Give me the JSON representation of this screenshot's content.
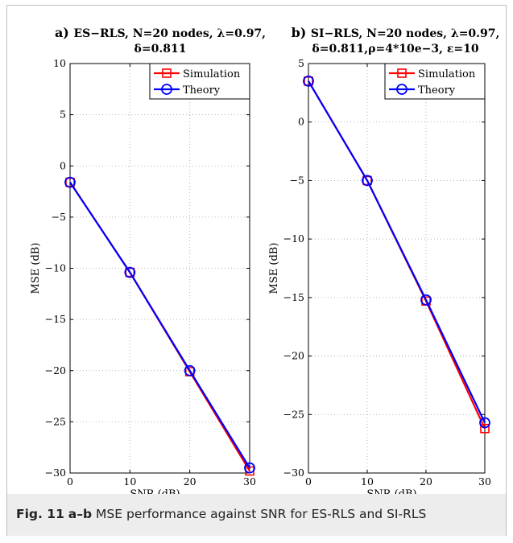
{
  "caption": {
    "label": "Fig. 11",
    "panels": "a–b",
    "text": "MSE performance against SNR for ES-RLS and SI-RLS"
  },
  "colors": {
    "simulation": "#ff0000",
    "theory": "#0000ff",
    "grid": "#a0a0a0"
  },
  "chart_data": [
    {
      "type": "line",
      "panel": "a)",
      "title_line1": "ES−RLS, N=20 nodes, λ=0.97,",
      "title_line2": "δ=0.811",
      "xlabel": "SNR (dB)",
      "ylabel": "MSE (dB)",
      "xlim": [
        0,
        30
      ],
      "ylim": [
        -30,
        10
      ],
      "xticks": [
        0,
        10,
        20,
        30
      ],
      "yticks": [
        -30,
        -25,
        -20,
        -15,
        -10,
        -5,
        0,
        5,
        10
      ],
      "grid": true,
      "legend_position": "top-right",
      "x": [
        0,
        10,
        20,
        30
      ],
      "series": [
        {
          "name": "Simulation",
          "marker": "square",
          "color": "#ff0000",
          "values": [
            -1.6,
            -10.4,
            -20.1,
            -29.8
          ]
        },
        {
          "name": "Theory",
          "marker": "circle",
          "color": "#0000ff",
          "values": [
            -1.6,
            -10.4,
            -20.0,
            -29.5
          ]
        }
      ]
    },
    {
      "type": "line",
      "panel": "b)",
      "title_line1": "SI−RLS, N=20 nodes, λ=0.97,",
      "title_line2": "δ=0.811,ρ=4*10e−3, ε=10",
      "xlabel": "SNR (dB)",
      "ylabel": "MSE (dB)",
      "xlim": [
        0,
        30
      ],
      "ylim": [
        -30,
        5
      ],
      "xticks": [
        0,
        10,
        20,
        30
      ],
      "yticks": [
        -30,
        -25,
        -20,
        -15,
        -10,
        -5,
        0,
        5
      ],
      "grid": true,
      "legend_position": "top-right",
      "x": [
        0,
        10,
        20,
        30
      ],
      "series": [
        {
          "name": "Simulation",
          "marker": "square",
          "color": "#ff0000",
          "values": [
            3.5,
            -5.0,
            -15.3,
            -26.2
          ]
        },
        {
          "name": "Theory",
          "marker": "circle",
          "color": "#0000ff",
          "values": [
            3.5,
            -5.0,
            -15.2,
            -25.7
          ]
        }
      ]
    }
  ]
}
